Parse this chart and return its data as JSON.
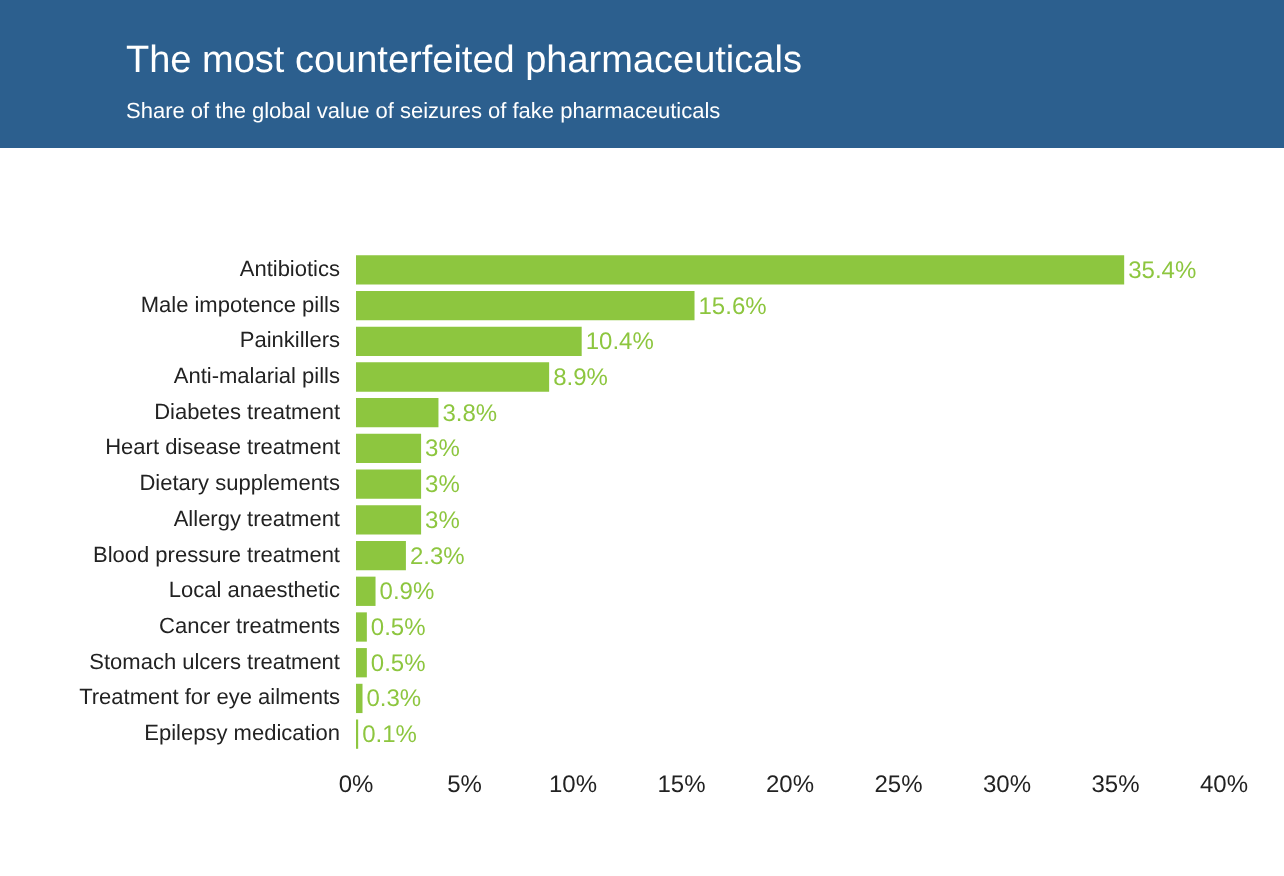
{
  "chart_data": {
    "type": "bar",
    "orientation": "horizontal",
    "title": "The most counterfeited pharmaceuticals",
    "subtitle": "Share of the global value of seizures of fake pharmaceuticals",
    "categories": [
      "Antibiotics",
      "Male impotence pills",
      "Painkillers",
      "Anti-malarial pills",
      "Diabetes treatment",
      "Heart disease treatment",
      "Dietary supplements",
      "Allergy treatment",
      "Blood pressure treatment",
      "Local anaesthetic",
      "Cancer treatments",
      "Stomach ulcers treatment",
      "Treatment for eye ailments",
      "Epilepsy medication"
    ],
    "values": [
      35.4,
      15.6,
      10.4,
      8.9,
      3.8,
      3,
      3,
      3,
      2.3,
      0.9,
      0.5,
      0.5,
      0.3,
      0.1
    ],
    "value_labels": [
      "35.4%",
      "15.6%",
      "10.4%",
      "8.9%",
      "3.8%",
      "3%",
      "3%",
      "3%",
      "2.3%",
      "0.9%",
      "0.5%",
      "0.5%",
      "0.3%",
      "0.1%"
    ],
    "color": "#8dc63f",
    "xlim": [
      0,
      40
    ],
    "xticks": [
      {
        "value": 0,
        "label": "0%"
      },
      {
        "value": 5,
        "label": "5%"
      },
      {
        "value": 10,
        "label": "10%"
      },
      {
        "value": 15,
        "label": "15%"
      },
      {
        "value": 20,
        "label": "20%"
      },
      {
        "value": 25,
        "label": "25%"
      },
      {
        "value": 30,
        "label": "30%"
      },
      {
        "value": 35,
        "label": "35%"
      },
      {
        "value": 40,
        "label": "40%"
      }
    ],
    "grid": false
  }
}
